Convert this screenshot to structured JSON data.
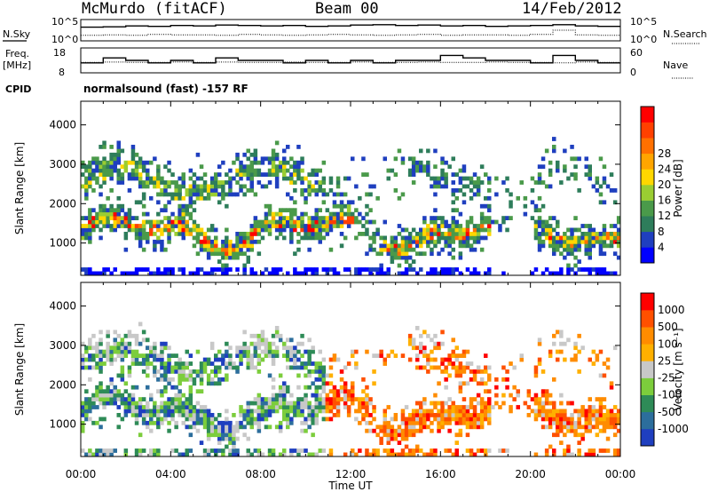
{
  "header": {
    "station": "McMurdo (fitACF)",
    "beam": "Beam 00",
    "date": "14/Feb/2012"
  },
  "side_labels": {
    "nsky": "N.Sky",
    "nsearch": "N.Search",
    "freq": "Freq.",
    "freq_unit": "[MHz]",
    "nave": "Nave",
    "cpid": "CPID",
    "nsky_top": "10^5",
    "nsky_bot": "10^0",
    "nsearch_top": "10^5",
    "nsearch_bot": "10^0",
    "freq_top": "18",
    "freq_bot": "8",
    "nave_top": "60",
    "nave_bot": "0"
  },
  "cpid_text": "normalsound (fast) -157 RF",
  "xlabel": "Time UT",
  "colors": {
    "power_scale": [
      "#0000ff",
      "#1f3fbf",
      "#2e7d5b",
      "#4a9a4a",
      "#9acd32",
      "#ffd700",
      "#ffa500",
      "#ff7000",
      "#ff4000",
      "#ff0000"
    ],
    "velocity_scale": [
      "#ff0000",
      "#ff5000",
      "#ff8c00",
      "#ffb000",
      "#c8c8c8",
      "#7ccd3c",
      "#2e8b57",
      "#2c6e9c",
      "#1f3fbf"
    ]
  },
  "chart_data": [
    {
      "type": "line",
      "title": "",
      "series": [
        {
          "name": "N.Sky",
          "values": [
            3.2,
            3.3,
            3.5,
            3.4,
            3.6,
            3.5,
            3.7,
            3.6,
            3.5,
            3.6,
            3.4,
            3.5,
            3.7,
            3.8,
            3.6,
            3.7,
            3.5,
            3.6,
            3.4,
            3.5,
            3.6,
            3.8,
            3.5,
            3.4
          ]
        },
        {
          "name": "N.Search",
          "values": [
            1.3,
            1.4,
            1.3,
            1.5,
            1.4,
            1.4,
            1.3,
            1.5,
            1.4,
            1.3,
            1.4,
            1.5,
            1.4,
            1.3,
            1.4,
            1.5,
            1.3,
            1.4,
            1.4,
            1.3,
            1.5,
            2.5,
            1.4,
            1.3
          ]
        }
      ],
      "x": [
        "00:00",
        "01:00",
        "02:00",
        "03:00",
        "04:00",
        "05:00",
        "06:00",
        "07:00",
        "08:00",
        "09:00",
        "10:00",
        "11:00",
        "12:00",
        "13:00",
        "14:00",
        "15:00",
        "16:00",
        "17:00",
        "18:00",
        "19:00",
        "20:00",
        "21:00",
        "22:00",
        "23:00"
      ]
    },
    {
      "type": "line",
      "series": [
        {
          "name": "Freq",
          "values": [
            12,
            14,
            13,
            12,
            13,
            12,
            14,
            13,
            13,
            12,
            13,
            12,
            13,
            12,
            13,
            13,
            15,
            14,
            13,
            13,
            12,
            15,
            13,
            12
          ]
        },
        {
          "name": "Nave",
          "values": [
            25,
            26,
            25,
            25,
            26,
            25,
            26,
            25,
            25,
            26,
            25,
            25,
            26,
            25,
            25,
            26,
            25,
            25,
            26,
            25,
            25,
            24,
            26,
            25
          ]
        }
      ],
      "x": [
        "00:00",
        "01:00",
        "02:00",
        "03:00",
        "04:00",
        "05:00",
        "06:00",
        "07:00",
        "08:00",
        "09:00",
        "10:00",
        "11:00",
        "12:00",
        "13:00",
        "14:00",
        "15:00",
        "16:00",
        "17:00",
        "18:00",
        "19:00",
        "20:00",
        "21:00",
        "22:00",
        "23:00"
      ]
    },
    {
      "type": "heatmap",
      "ylabel": "Slant Range [km]",
      "xlabel": "Time UT",
      "colorbar_label": "Power [dB]",
      "xticks": [
        "00:00",
        "04:00",
        "08:00",
        "12:00",
        "16:00",
        "20:00",
        "00:00"
      ],
      "yticks": [
        "1000",
        "2000",
        "3000",
        "4000"
      ],
      "colorbar_ticks": [
        "4",
        "8",
        "12",
        "16",
        "20",
        "24",
        "28"
      ],
      "xlim": [
        0,
        24
      ],
      "ylim": [
        180,
        4600
      ]
    },
    {
      "type": "heatmap",
      "ylabel": "Slant Range [km]",
      "xlabel": "Time UT",
      "colorbar_label": "Velocity [m s⁻¹]",
      "xticks": [
        "00:00",
        "04:00",
        "08:00",
        "12:00",
        "16:00",
        "20:00",
        "00:00"
      ],
      "yticks": [
        "1000",
        "2000",
        "3000",
        "4000"
      ],
      "colorbar_ticks": [
        "1000",
        "500",
        "100",
        "25",
        "-25",
        "-100",
        "-500",
        "-1000"
      ],
      "xlim": [
        0,
        24
      ],
      "ylim": [
        180,
        4600
      ]
    }
  ]
}
